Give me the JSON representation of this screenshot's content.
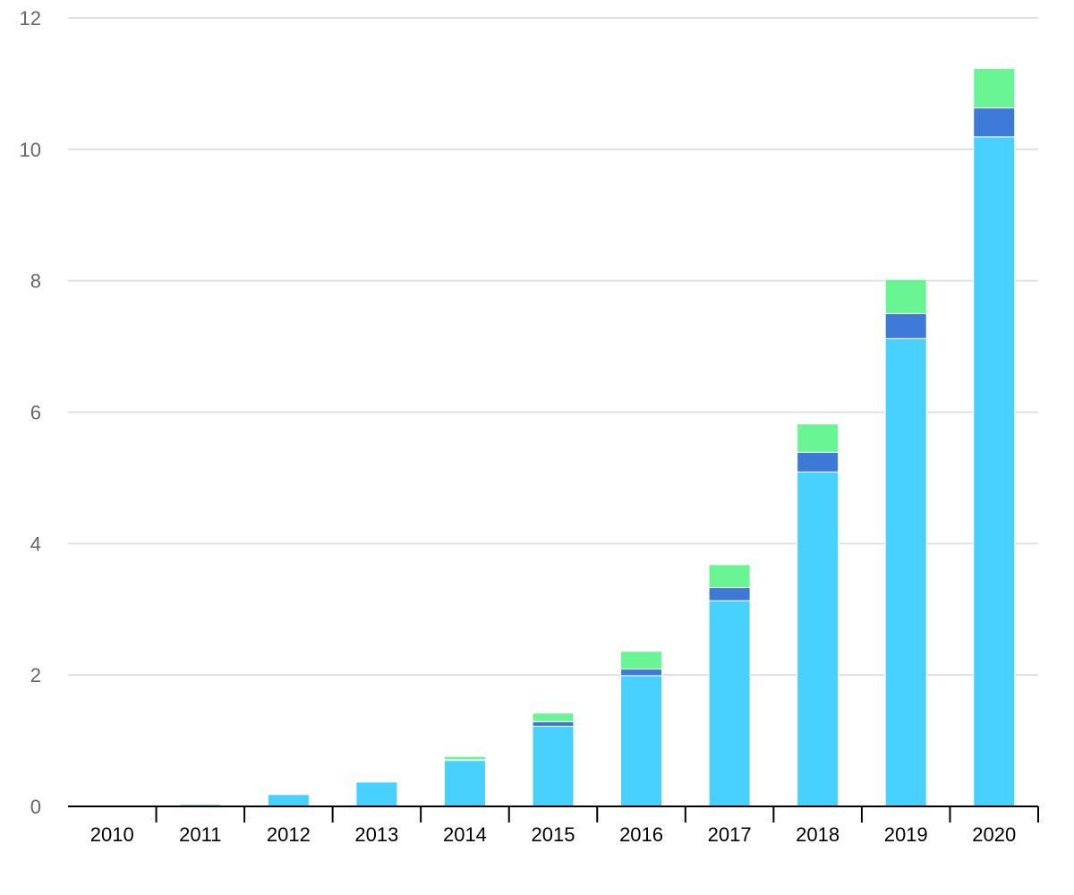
{
  "chart_data": {
    "type": "bar",
    "stacked": true,
    "categories": [
      "2010",
      "2011",
      "2012",
      "2013",
      "2014",
      "2015",
      "2016",
      "2017",
      "2018",
      "2019",
      "2020"
    ],
    "series": [
      {
        "color": "#48d1ff",
        "values": [
          0,
          0.03,
          0.18,
          0.37,
          0.7,
          1.22,
          1.99,
          3.13,
          5.09,
          7.12,
          10.19
        ]
      },
      {
        "color": "#3d7ad8",
        "values": [
          0,
          0,
          0,
          0,
          0.01,
          0.07,
          0.1,
          0.2,
          0.3,
          0.38,
          0.44
        ]
      },
      {
        "color": "#69f594",
        "values": [
          0,
          0,
          0,
          0,
          0.05,
          0.13,
          0.27,
          0.35,
          0.43,
          0.52,
          0.6
        ]
      }
    ],
    "y_ticks": [
      "0",
      "2",
      "4",
      "6",
      "8",
      "10",
      "12"
    ],
    "ylim": [
      0,
      12
    ],
    "grid": true,
    "legend": "none"
  }
}
